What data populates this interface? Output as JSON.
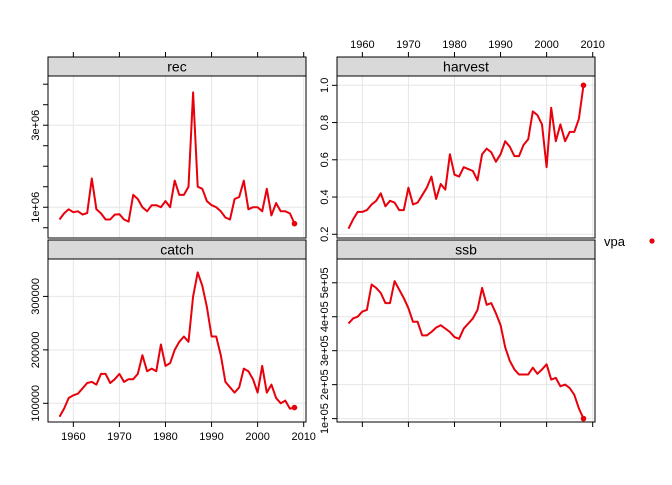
{
  "chart_data": {
    "type": "line",
    "legend": {
      "position": "right",
      "entries": [
        {
          "label": "vpa",
          "color": "#e8000b",
          "marker": "point"
        }
      ]
    },
    "grid": true,
    "series_color": "#e8000b",
    "x_ticks": [
      1960,
      1970,
      1980,
      1990,
      2000,
      2010
    ],
    "xlim": [
      1954.5,
      2010.5
    ],
    "panels": [
      {
        "id": "rec",
        "title": "rec",
        "ylim": [
          250000,
          4200000
        ],
        "y_ticks": [
          {
            "v": 1000000,
            "label": "1e+06"
          },
          {
            "v": 3000000,
            "label": "3e+06"
          }
        ],
        "y_minor_ticks": [
          500000,
          1500000,
          2000000,
          2500000,
          3500000,
          4000000
        ],
        "x": [
          1957,
          1958,
          1959,
          1960,
          1961,
          1962,
          1963,
          1964,
          1965,
          1966,
          1967,
          1968,
          1969,
          1970,
          1971,
          1972,
          1973,
          1974,
          1975,
          1976,
          1977,
          1978,
          1979,
          1980,
          1981,
          1982,
          1983,
          1984,
          1985,
          1986,
          1987,
          1988,
          1989,
          1990,
          1991,
          1992,
          1993,
          1994,
          1995,
          1996,
          1997,
          1998,
          1999,
          2000,
          2001,
          2002,
          2003,
          2004,
          2005,
          2006,
          2007,
          2008
        ],
        "y": [
          700000,
          850000,
          950000,
          880000,
          900000,
          820000,
          860000,
          1700000,
          950000,
          850000,
          700000,
          700000,
          820000,
          830000,
          700000,
          650000,
          1300000,
          1200000,
          1000000,
          900000,
          1050000,
          1050000,
          1000000,
          1150000,
          1000000,
          1650000,
          1300000,
          1300000,
          1500000,
          3800000,
          1500000,
          1450000,
          1150000,
          1050000,
          1000000,
          900000,
          750000,
          700000,
          1200000,
          1250000,
          1650000,
          950000,
          1000000,
          1000000,
          900000,
          1450000,
          800000,
          1100000,
          900000,
          900000,
          850000,
          600000
        ]
      },
      {
        "id": "harvest",
        "title": "harvest",
        "ylim": [
          0.18,
          1.05
        ],
        "y_ticks": [
          {
            "v": 0.2,
            "label": "0.2"
          },
          {
            "v": 0.4,
            "label": "0.4"
          },
          {
            "v": 0.6,
            "label": "0.6"
          },
          {
            "v": 0.8,
            "label": "0.8"
          },
          {
            "v": 1.0,
            "label": "1.0"
          }
        ],
        "x": [
          1957,
          1958,
          1959,
          1960,
          1961,
          1962,
          1963,
          1964,
          1965,
          1966,
          1967,
          1968,
          1969,
          1970,
          1971,
          1972,
          1973,
          1974,
          1975,
          1976,
          1977,
          1978,
          1979,
          1980,
          1981,
          1982,
          1983,
          1984,
          1985,
          1986,
          1987,
          1988,
          1989,
          1990,
          1991,
          1992,
          1993,
          1994,
          1995,
          1996,
          1997,
          1998,
          1999,
          2000,
          2001,
          2002,
          2003,
          2004,
          2005,
          2006,
          2007,
          2008
        ],
        "y": [
          0.23,
          0.28,
          0.32,
          0.32,
          0.33,
          0.36,
          0.38,
          0.42,
          0.35,
          0.38,
          0.37,
          0.33,
          0.33,
          0.45,
          0.36,
          0.37,
          0.41,
          0.45,
          0.51,
          0.39,
          0.47,
          0.44,
          0.63,
          0.52,
          0.51,
          0.56,
          0.55,
          0.54,
          0.49,
          0.63,
          0.66,
          0.64,
          0.59,
          0.63,
          0.7,
          0.67,
          0.62,
          0.62,
          0.68,
          0.71,
          0.86,
          0.84,
          0.79,
          0.56,
          0.88,
          0.7,
          0.79,
          0.7,
          0.75,
          0.75,
          0.82,
          1.0
        ]
      },
      {
        "id": "catch",
        "title": "catch",
        "ylim": [
          65000,
          370000
        ],
        "y_ticks": [
          {
            "v": 100000,
            "label": "100000"
          },
          {
            "v": 200000,
            "label": "200000"
          },
          {
            "v": 300000,
            "label": "300000"
          }
        ],
        "x": [
          1957,
          1958,
          1959,
          1960,
          1961,
          1962,
          1963,
          1964,
          1965,
          1966,
          1967,
          1968,
          1969,
          1970,
          1971,
          1972,
          1973,
          1974,
          1975,
          1976,
          1977,
          1978,
          1979,
          1980,
          1981,
          1982,
          1983,
          1984,
          1985,
          1986,
          1987,
          1988,
          1989,
          1990,
          1991,
          1992,
          1993,
          1994,
          1995,
          1996,
          1997,
          1998,
          1999,
          2000,
          2001,
          2002,
          2003,
          2004,
          2005,
          2006,
          2007,
          2008
        ],
        "y": [
          75000,
          90000,
          110000,
          115000,
          118000,
          128000,
          138000,
          140000,
          135000,
          155000,
          155000,
          138000,
          145000,
          155000,
          140000,
          145000,
          145000,
          155000,
          190000,
          160000,
          165000,
          160000,
          210000,
          170000,
          175000,
          200000,
          215000,
          225000,
          215000,
          300000,
          345000,
          320000,
          280000,
          225000,
          225000,
          190000,
          140000,
          130000,
          120000,
          130000,
          165000,
          160000,
          145000,
          120000,
          170000,
          120000,
          135000,
          110000,
          100000,
          105000,
          90000,
          92000
        ]
      },
      {
        "id": "ssb",
        "title": "ssb",
        "ylim": [
          90000,
          570000
        ],
        "y_ticks": [
          {
            "v": 100000,
            "label": "1e+05"
          },
          {
            "v": 200000,
            "label": "2e+05"
          },
          {
            "v": 300000,
            "label": "3e+05"
          },
          {
            "v": 400000,
            "label": "4e+05"
          },
          {
            "v": 500000,
            "label": "5e+05"
          }
        ],
        "x": [
          1957,
          1958,
          1959,
          1960,
          1961,
          1962,
          1963,
          1964,
          1965,
          1966,
          1967,
          1968,
          1969,
          1970,
          1971,
          1972,
          1973,
          1974,
          1975,
          1976,
          1977,
          1978,
          1979,
          1980,
          1981,
          1982,
          1983,
          1984,
          1985,
          1986,
          1987,
          1988,
          1989,
          1990,
          1991,
          1992,
          1993,
          1994,
          1995,
          1996,
          1997,
          1998,
          1999,
          2000,
          2001,
          2002,
          2003,
          2004,
          2005,
          2006,
          2007,
          2008
        ],
        "y": [
          380000,
          395000,
          400000,
          415000,
          420000,
          495000,
          485000,
          470000,
          440000,
          440000,
          505000,
          480000,
          455000,
          425000,
          385000,
          385000,
          345000,
          345000,
          355000,
          368000,
          375000,
          365000,
          355000,
          340000,
          335000,
          365000,
          380000,
          395000,
          420000,
          485000,
          435000,
          440000,
          410000,
          375000,
          310000,
          270000,
          245000,
          230000,
          230000,
          230000,
          250000,
          232000,
          245000,
          260000,
          215000,
          220000,
          195000,
          200000,
          190000,
          170000,
          130000,
          100000
        ]
      }
    ]
  }
}
